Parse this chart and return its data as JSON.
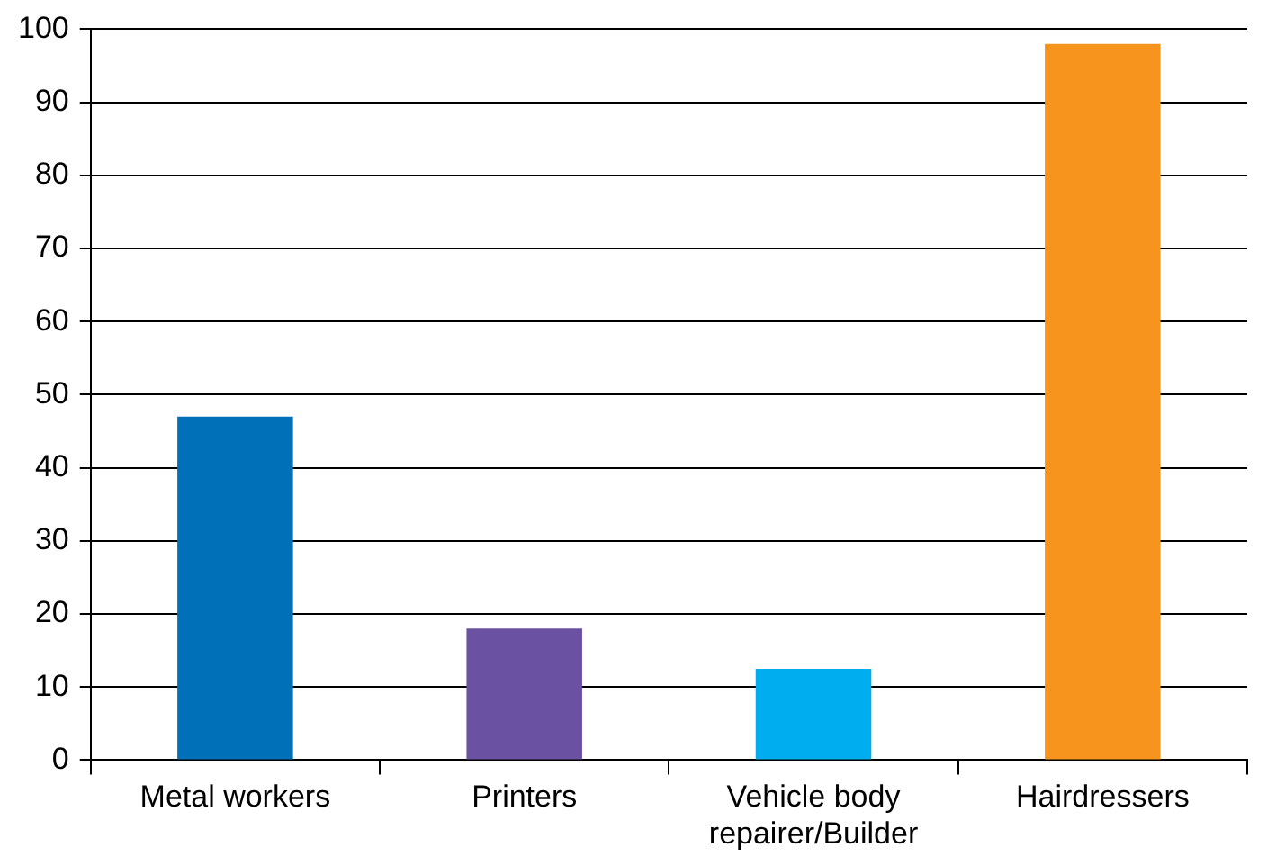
{
  "chart_data": {
    "type": "bar",
    "categories": [
      "Metal workers",
      "Printers",
      "Vehicle body repairer/Builder",
      "Hairdressers"
    ],
    "values": [
      47,
      18,
      12.5,
      98
    ],
    "colors": [
      "#0070b8",
      "#6a51a1",
      "#00aeef",
      "#f7941d"
    ],
    "ylim": [
      0,
      100
    ],
    "yticks": [
      0,
      10,
      20,
      30,
      40,
      50,
      60,
      70,
      80,
      90,
      100
    ],
    "grid": "y"
  }
}
